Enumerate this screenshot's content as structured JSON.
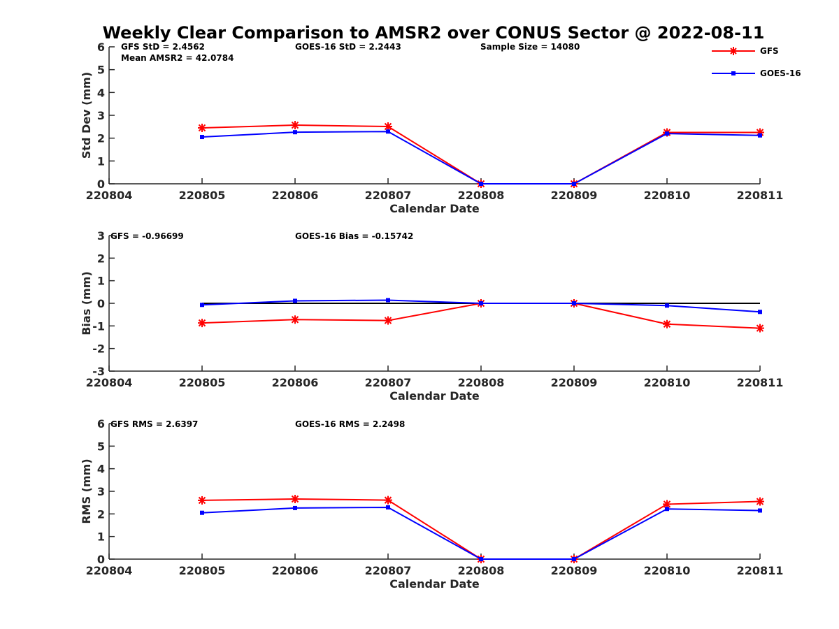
{
  "chart_data": {
    "title": "Weekly Clear Comparison to AMSR2 over CONUS Sector @ 2022-08-11",
    "x_tick_labels": [
      "220804",
      "220805",
      "220806",
      "220807",
      "220808",
      "220809",
      "220810",
      "220811"
    ],
    "legend": {
      "placement": "top-right",
      "entries": [
        {
          "name": "GFS",
          "color": "#ff0000",
          "marker": "asterisk"
        },
        {
          "name": "GOES-16",
          "color": "#0000ff",
          "marker": "square"
        }
      ]
    },
    "panels": [
      {
        "type": "line",
        "xlabel": "Calendar Date",
        "ylabel": "Std Dev (mm)",
        "ylim": [
          0,
          6
        ],
        "yticks": [
          0,
          1,
          2,
          3,
          4,
          5,
          6
        ],
        "x": [
          "220805",
          "220806",
          "220807",
          "220808",
          "220809",
          "220810",
          "220811"
        ],
        "series": [
          {
            "name": "GFS",
            "color": "#ff0000",
            "values": [
              2.45,
              2.57,
              2.51,
              0.0,
              0.0,
              2.25,
              2.25
            ]
          },
          {
            "name": "GOES-16",
            "color": "#0000ff",
            "values": [
              2.05,
              2.26,
              2.29,
              0.0,
              0.0,
              2.2,
              2.12
            ]
          }
        ],
        "annotations": [
          "GFS StD = 2.4562",
          "Mean AMSR2 = 42.0784",
          "GOES-16 StD = 2.2443",
          "Sample Size = 14080"
        ]
      },
      {
        "type": "line",
        "xlabel": "Calendar Date",
        "ylabel": "Bias (mm)",
        "ylim": [
          -3,
          3
        ],
        "yticks": [
          -3,
          -2,
          -1,
          0,
          1,
          2,
          3
        ],
        "zero_line": true,
        "x": [
          "220805",
          "220806",
          "220807",
          "220808",
          "220809",
          "220810",
          "220811"
        ],
        "series": [
          {
            "name": "GFS",
            "color": "#ff0000",
            "values": [
              -0.87,
              -0.72,
              -0.76,
              0.0,
              0.0,
              -0.92,
              -1.1
            ]
          },
          {
            "name": "GOES-16",
            "color": "#0000ff",
            "values": [
              -0.07,
              0.11,
              0.14,
              0.0,
              0.0,
              -0.1,
              -0.38
            ]
          }
        ],
        "annotations": [
          "GFS = -0.96699",
          "GOES-16 Bias  = -0.15742"
        ]
      },
      {
        "type": "line",
        "xlabel": "Calendar Date",
        "ylabel": "RMS (mm)",
        "ylim": [
          0,
          6
        ],
        "yticks": [
          0,
          1,
          2,
          3,
          4,
          5,
          6
        ],
        "x": [
          "220805",
          "220806",
          "220807",
          "220808",
          "220809",
          "220810",
          "220811"
        ],
        "series": [
          {
            "name": "GFS",
            "color": "#ff0000",
            "values": [
              2.6,
              2.66,
              2.61,
              0.0,
              0.0,
              2.43,
              2.55
            ]
          },
          {
            "name": "GOES-16",
            "color": "#0000ff",
            "values": [
              2.05,
              2.26,
              2.29,
              0.0,
              0.0,
              2.22,
              2.15
            ]
          }
        ],
        "annotations": [
          "GFS RMS = 2.6397",
          "GOES-16 RMS = 2.2498"
        ]
      }
    ]
  }
}
